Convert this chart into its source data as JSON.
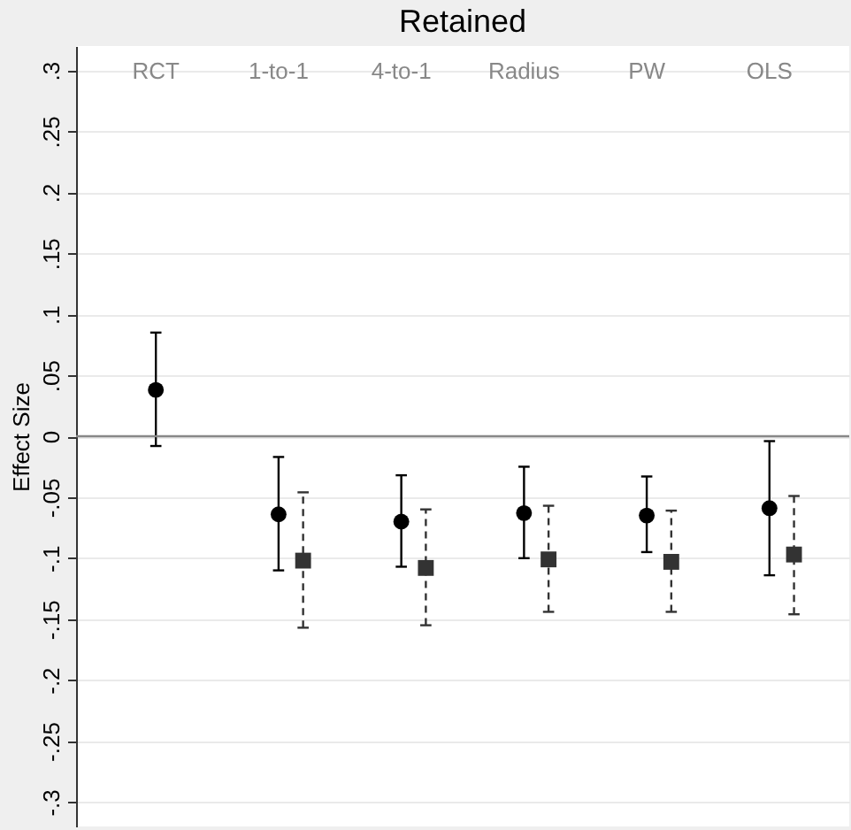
{
  "chart_data": {
    "type": "scatter",
    "title": "Retained",
    "ylabel": "Effect Size",
    "categories": [
      "RCT",
      "1-to-1",
      "4-to-1",
      "Radius",
      "PW",
      "OLS"
    ],
    "series": [
      {
        "color": "#000000",
        "marker": "circle",
        "line_style": "solid",
        "values": [
          0.038,
          -0.064,
          -0.07,
          -0.063,
          -0.065,
          -0.059
        ],
        "errors": [
          [
            -0.008,
            0.085
          ],
          [
            -0.11,
            -0.017
          ],
          [
            -0.107,
            -0.032
          ],
          [
            -0.1,
            -0.025
          ],
          [
            -0.095,
            -0.033
          ],
          [
            -0.114,
            -0.004
          ]
        ]
      },
      {
        "color": "#333333",
        "marker": "square",
        "line_style": "dashed",
        "values": [
          null,
          -0.102,
          -0.108,
          -0.101,
          -0.103,
          -0.097
        ],
        "errors": [
          null,
          [
            -0.157,
            -0.046
          ],
          [
            -0.155,
            -0.06
          ],
          [
            -0.144,
            -0.057
          ],
          [
            -0.144,
            -0.061
          ],
          [
            -0.146,
            -0.049
          ]
        ]
      }
    ],
    "ylim": [
      -0.32,
      0.32
    ],
    "yticks": [
      {
        "value": 0.3,
        "label": ".3"
      },
      {
        "value": 0.25,
        "label": ".25"
      },
      {
        "value": 0.2,
        "label": ".2"
      },
      {
        "value": 0.15,
        "label": ".15"
      },
      {
        "value": 0.1,
        "label": ".1"
      },
      {
        "value": 0.05,
        "label": ".05"
      },
      0,
      {
        "value": -0.05,
        "label": "-.05"
      },
      {
        "value": -0.1,
        "label": "-.1"
      },
      {
        "value": -0.15,
        "label": "-.15"
      },
      {
        "value": -0.2,
        "label": "-.2"
      },
      {
        "value": -0.25,
        "label": "-.25"
      },
      {
        "value": -0.3,
        "label": "-.3"
      }
    ],
    "grid": "y",
    "ref_lines": [
      {
        "axis": "y",
        "value": 0,
        "color": "#888888"
      }
    ]
  }
}
